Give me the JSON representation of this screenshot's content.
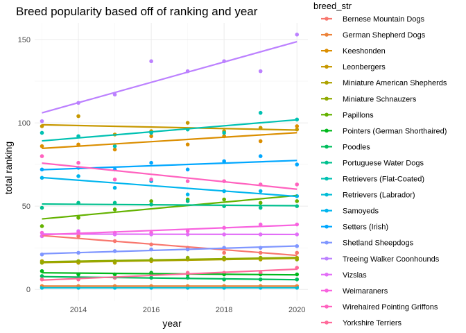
{
  "chart_data": {
    "type": "scatter",
    "title": "Breed popularity based off of ranking and year",
    "xlabel": "year",
    "ylabel": "total ranking",
    "xlim": [
      2012.8,
      2020.3
    ],
    "ylim": [
      -7,
      160
    ],
    "xticks": [
      2014,
      2016,
      2018,
      2020
    ],
    "yticks": [
      0,
      50,
      100,
      150
    ],
    "x": [
      2013,
      2014,
      2015,
      2016,
      2017,
      2018,
      2019,
      2020
    ],
    "grid": true,
    "legend_position": "right",
    "legend_title": "breed_str",
    "trend_lines": true,
    "series": [
      {
        "name": "Bernese Mountain Dogs",
        "color": "#F8766D",
        "values": [
          32,
          32,
          29,
          27,
          25,
          22,
          22,
          22
        ]
      },
      {
        "name": "German Shepherd Dogs",
        "color": "#EC8239",
        "values": [
          2,
          2,
          2,
          2,
          2,
          2,
          2,
          2
        ]
      },
      {
        "name": "Keeshonden",
        "color": "#DB8E00",
        "values": [
          86,
          87,
          84,
          92,
          87,
          92,
          89,
          98
        ]
      },
      {
        "name": "Leonbergers",
        "color": "#C79800",
        "values": [
          98,
          104,
          93,
          95,
          100,
          95,
          97,
          96
        ]
      },
      {
        "name": "Miniature American Shepherds",
        "color": "#AEA200",
        "values": [
          17,
          16,
          16,
          17,
          18,
          18,
          18,
          19
        ]
      },
      {
        "name": "Miniature Schnauzers",
        "color": "#8FAA00",
        "values": [
          16,
          17,
          17,
          18,
          19,
          19,
          19,
          18
        ]
      },
      {
        "name": "Papillons",
        "color": "#64B200",
        "values": [
          38,
          43,
          48,
          53,
          54,
          54,
          52,
          53
        ]
      },
      {
        "name": "Pointers (German Shorthaired)",
        "color": "#00B81B",
        "values": [
          11,
          9,
          9,
          10,
          9,
          9,
          9,
          9
        ]
      },
      {
        "name": "Poodles",
        "color": "#00BD5C",
        "values": [
          8,
          7,
          7,
          7,
          7,
          6,
          6,
          6
        ]
      },
      {
        "name": "Portuguese Water Dogs",
        "color": "#00C08E",
        "values": [
          49,
          52,
          52,
          51,
          53,
          50,
          49,
          50
        ]
      },
      {
        "name": "Retrievers (Flat-Coated)",
        "color": "#00C1B2",
        "values": [
          94,
          92,
          86,
          94,
          96,
          94,
          106,
          102
        ]
      },
      {
        "name": "Retrievers (Labrador)",
        "color": "#00BCD6",
        "values": [
          1,
          1,
          1,
          1,
          1,
          1,
          1,
          1
        ]
      },
      {
        "name": "Samoyeds",
        "color": "#00B5EE",
        "values": [
          67,
          68,
          61,
          65,
          57,
          59,
          59,
          56
        ]
      },
      {
        "name": "Setters (Irish)",
        "color": "#00A7FF",
        "values": [
          72,
          73,
          72,
          76,
          72,
          77,
          80,
          75
        ]
      },
      {
        "name": "Shetland Sheepdogs",
        "color": "#7F96FF",
        "values": [
          21,
          22,
          23,
          24,
          24,
          25,
          25,
          26
        ]
      },
      {
        "name": "Treeing Walker Coonhounds",
        "color": "#BC81FF",
        "values": [
          101,
          112,
          117,
          137,
          131,
          137,
          131,
          153
        ]
      },
      {
        "name": "Vizslas",
        "color": "#E26EF7",
        "values": [
          32,
          35,
          33,
          33,
          33,
          33,
          33,
          33
        ]
      },
      {
        "name": "Weimaraners",
        "color": "#F863DF",
        "values": [
          34,
          34,
          34,
          34,
          35,
          37,
          39,
          39
        ]
      },
      {
        "name": "Wirehaired Pointing Griffons",
        "color": "#FF62BF",
        "values": [
          80,
          76,
          66,
          66,
          65,
          65,
          63,
          63
        ]
      },
      {
        "name": "Yorkshire Terriers",
        "color": "#FF6A9A",
        "values": [
          6,
          6,
          7,
          9,
          10,
          10,
          10,
          13
        ]
      }
    ]
  }
}
